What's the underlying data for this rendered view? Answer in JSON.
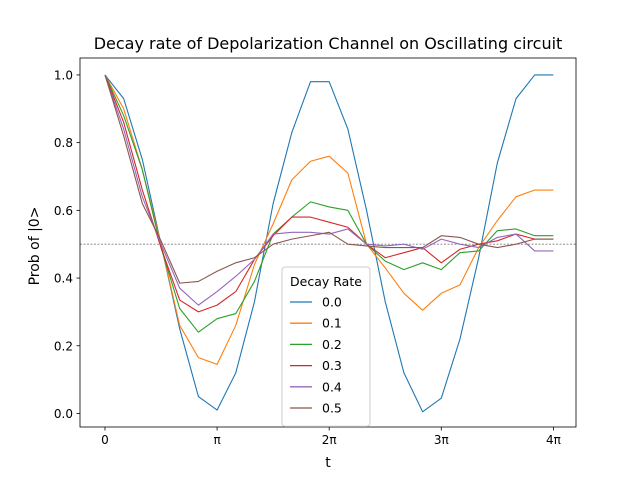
{
  "chart_data": {
    "type": "line",
    "title": "Decay rate of Depolarization Channel on Oscillating circuit",
    "xlabel": "t",
    "ylabel": "Prob of |0>",
    "xlim": [
      -0.7,
      13.2
    ],
    "ylim": [
      -0.04,
      1.05
    ],
    "x_ticks": [
      {
        "value": 0,
        "label": "0"
      },
      {
        "value": 3.14159,
        "label": "π"
      },
      {
        "value": 6.28319,
        "label": "2π"
      },
      {
        "value": 9.42478,
        "label": "3π"
      },
      {
        "value": 12.56637,
        "label": "4π"
      }
    ],
    "y_ticks": [
      {
        "value": 0.0,
        "label": "0.0"
      },
      {
        "value": 0.2,
        "label": "0.2"
      },
      {
        "value": 0.4,
        "label": "0.4"
      },
      {
        "value": 0.6,
        "label": "0.6"
      },
      {
        "value": 0.8,
        "label": "0.8"
      },
      {
        "value": 1.0,
        "label": "1.0"
      }
    ],
    "reference_line": {
      "y": 0.5,
      "style": "dotted",
      "color": "#808080"
    },
    "grid": false,
    "legend": {
      "title": "Decay Rate",
      "placement": "lower-center"
    },
    "x": [
      0,
      0.5236,
      1.0472,
      1.5708,
      2.0944,
      2.618,
      3.1416,
      3.6652,
      4.1888,
      4.7124,
      5.236,
      5.7596,
      6.2832,
      6.8068,
      7.3304,
      7.854,
      8.3776,
      8.9012,
      9.4248,
      9.9484,
      10.472,
      10.9956,
      11.5192,
      12.0428,
      12.5664
    ],
    "series": [
      {
        "name": "0.0",
        "color": "#1f77b4",
        "values": [
          1.0,
          0.93,
          0.75,
          0.5,
          0.25,
          0.05,
          0.01,
          0.12,
          0.33,
          0.62,
          0.83,
          0.98,
          0.98,
          0.84,
          0.6,
          0.33,
          0.12,
          0.005,
          0.045,
          0.22,
          0.46,
          0.74,
          0.93,
          1.0,
          1.0
        ]
      },
      {
        "name": "0.1",
        "color": "#ff7f0e",
        "values": [
          1.0,
          0.9,
          0.72,
          0.5,
          0.26,
          0.165,
          0.145,
          0.26,
          0.44,
          0.56,
          0.69,
          0.745,
          0.76,
          0.71,
          0.5,
          0.43,
          0.355,
          0.305,
          0.355,
          0.38,
          0.49,
          0.57,
          0.64,
          0.66,
          0.66
        ]
      },
      {
        "name": "0.2",
        "color": "#2ca02c",
        "values": [
          1.0,
          0.88,
          0.72,
          0.49,
          0.31,
          0.24,
          0.28,
          0.295,
          0.39,
          0.53,
          0.58,
          0.625,
          0.61,
          0.6,
          0.5,
          0.45,
          0.425,
          0.445,
          0.425,
          0.475,
          0.48,
          0.54,
          0.545,
          0.525,
          0.525
        ]
      },
      {
        "name": "0.3",
        "color": "#d62728",
        "values": [
          1.0,
          0.86,
          0.66,
          0.49,
          0.335,
          0.3,
          0.32,
          0.36,
          0.455,
          0.525,
          0.58,
          0.58,
          0.565,
          0.55,
          0.5,
          0.46,
          0.475,
          0.49,
          0.445,
          0.485,
          0.5,
          0.51,
          0.53,
          0.515,
          0.515
        ]
      },
      {
        "name": "0.4",
        "color": "#9467bd",
        "values": [
          1.0,
          0.84,
          0.64,
          0.5,
          0.37,
          0.32,
          0.36,
          0.405,
          0.455,
          0.53,
          0.535,
          0.535,
          0.53,
          0.545,
          0.5,
          0.495,
          0.5,
          0.485,
          0.515,
          0.5,
          0.49,
          0.52,
          0.53,
          0.48,
          0.48
        ]
      },
      {
        "name": "0.5",
        "color": "#8c564b",
        "values": [
          1.0,
          0.82,
          0.62,
          0.51,
          0.385,
          0.39,
          0.42,
          0.445,
          0.46,
          0.5,
          0.515,
          0.525,
          0.535,
          0.5,
          0.495,
          0.49,
          0.49,
          0.49,
          0.525,
          0.52,
          0.5,
          0.49,
          0.5,
          0.515,
          0.515
        ]
      }
    ]
  }
}
